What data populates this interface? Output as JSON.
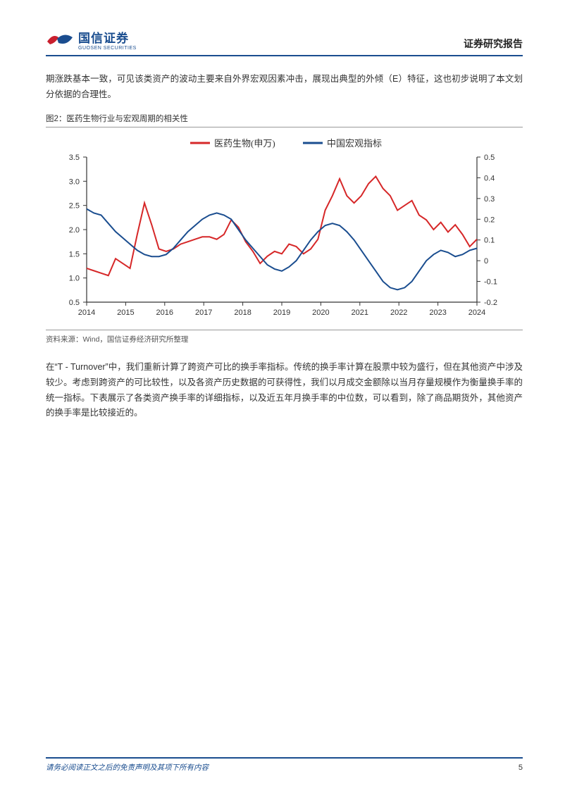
{
  "header": {
    "logo_cn": "国信证券",
    "logo_en": "GUOSEN SECURITIES",
    "report_type": "证券研究报告"
  },
  "paragraph1": "期涨跌基本一致，可见该类资产的波动主要来自外界宏观因素冲击，展现出典型的外倾（E）特征，这也初步说明了本文划分依据的合理性。",
  "chart": {
    "title_prefix": "图2：",
    "title": "医药生物行业与宏观周期的相关性",
    "type": "line",
    "legend": [
      {
        "label": "医药生物(申万)",
        "color": "#d62728"
      },
      {
        "label": "中国宏观指标",
        "color": "#1a4d8f"
      }
    ],
    "x_labels": [
      "2014",
      "2015",
      "2016",
      "2017",
      "2018",
      "2019",
      "2020",
      "2021",
      "2022",
      "2023",
      "2024"
    ],
    "left_axis": {
      "min": 0.5,
      "max": 3.5,
      "ticks": [
        0.5,
        1.0,
        1.5,
        2.0,
        2.5,
        3.0,
        3.5
      ]
    },
    "right_axis": {
      "min": -0.2,
      "max": 0.5,
      "ticks": [
        -0.2,
        -0.1,
        0,
        0.1,
        0.2,
        0.3,
        0.4,
        0.5
      ]
    },
    "series_red": [
      1.2,
      1.15,
      1.1,
      1.05,
      1.4,
      1.3,
      1.2,
      1.9,
      2.55,
      2.1,
      1.6,
      1.55,
      1.6,
      1.7,
      1.75,
      1.8,
      1.85,
      1.85,
      1.8,
      1.9,
      2.2,
      2.05,
      1.75,
      1.55,
      1.3,
      1.45,
      1.55,
      1.5,
      1.7,
      1.65,
      1.5,
      1.6,
      1.8,
      2.4,
      2.7,
      3.05,
      2.7,
      2.55,
      2.7,
      2.95,
      3.1,
      2.85,
      2.7,
      2.4,
      2.5,
      2.6,
      2.3,
      2.2,
      2.0,
      2.15,
      1.95,
      2.1,
      1.9,
      1.65,
      1.8
    ],
    "series_blue": [
      0.25,
      0.23,
      0.22,
      0.18,
      0.14,
      0.11,
      0.08,
      0.05,
      0.03,
      0.02,
      0.02,
      0.03,
      0.06,
      0.1,
      0.14,
      0.17,
      0.2,
      0.22,
      0.23,
      0.22,
      0.2,
      0.15,
      0.1,
      0.06,
      0.02,
      -0.02,
      -0.04,
      -0.05,
      -0.03,
      0.0,
      0.05,
      0.1,
      0.14,
      0.17,
      0.18,
      0.17,
      0.14,
      0.1,
      0.05,
      0.0,
      -0.05,
      -0.1,
      -0.13,
      -0.14,
      -0.13,
      -0.1,
      -0.05,
      0.0,
      0.03,
      0.05,
      0.04,
      0.02,
      0.03,
      0.05,
      0.06
    ],
    "background_color": "#ffffff",
    "axis_color": "#333333",
    "tick_fontsize": 11,
    "legend_fontsize": 13,
    "line_width": 2,
    "source_prefix": "资料来源：",
    "source": "Wind，国信证券经济研究所整理"
  },
  "paragraph2": "在“T - Turnover”中，我们重新计算了跨资产可比的换手率指标。传统的换手率计算在股票中较为盛行，但在其他资产中涉及较少。考虑到跨资产的可比较性，以及各资产历史数据的可获得性，我们以月成交金额除以当月存量规模作为衡量换手率的统一指标。下表展示了各类资产换手率的详细指标，以及近五年月换手率的中位数，可以看到，除了商品期货外，其他资产的换手率是比较接近的。",
  "footer": {
    "disclaimer": "请务必阅读正文之后的免责声明及其项下所有内容",
    "page_number": "5"
  },
  "logo_colors": {
    "left": "#c91f2e",
    "right": "#1a4d8f"
  }
}
